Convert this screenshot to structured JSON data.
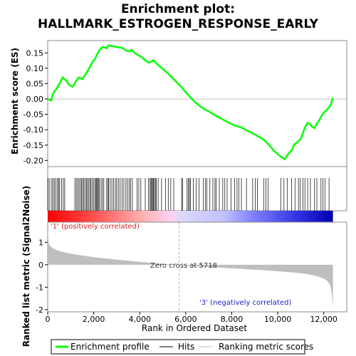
{
  "chart_data": {
    "type": "line",
    "title_line1": "Enrichment plot:",
    "title_line2": "HALLMARK_ESTROGEN_RESPONSE_EARLY",
    "es_panel": {
      "ylabel": "Enrichment score (ES)",
      "ylim": [
        -0.22,
        0.19
      ],
      "yticks": [
        -0.2,
        -0.15,
        -0.1,
        -0.05,
        0.0,
        0.05,
        0.1,
        0.15
      ],
      "ytick_labels": [
        "-0.20",
        "-0.15",
        "-0.10",
        "-0.05",
        "0.00",
        "0.05",
        "0.10",
        "0.15"
      ],
      "color": "#00ff00",
      "x": [
        0,
        150,
        250,
        400,
        550,
        650,
        800,
        950,
        1100,
        1200,
        1350,
        1500,
        1650,
        1800,
        1900,
        2050,
        2150,
        2250,
        2400,
        2550,
        2650,
        2800,
        2950,
        3100,
        3250,
        3400,
        3550,
        3650,
        3800,
        3950,
        4100,
        4250,
        4400,
        4500,
        4600,
        4700,
        4850,
        5000,
        5200,
        5400,
        5600,
        5800,
        6000,
        6200,
        6400,
        6600,
        6800,
        7000,
        7200,
        7400,
        7600,
        7800,
        8000,
        8200,
        8400,
        8600,
        8800,
        9000,
        9200,
        9400,
        9600,
        9800,
        10000,
        10150,
        10300,
        10400,
        10500,
        10600,
        10700,
        10850,
        11000,
        11100,
        11200,
        11300,
        11400,
        11500,
        11600,
        11700,
        11800,
        11900,
        12000,
        12100,
        12200,
        12300,
        12400
      ],
      "y": [
        0.0,
        -0.005,
        0.02,
        0.035,
        0.055,
        0.07,
        0.06,
        0.045,
        0.04,
        0.055,
        0.07,
        0.065,
        0.08,
        0.1,
        0.115,
        0.13,
        0.145,
        0.16,
        0.17,
        0.165,
        0.175,
        0.172,
        0.17,
        0.168,
        0.166,
        0.158,
        0.155,
        0.16,
        0.148,
        0.142,
        0.135,
        0.125,
        0.118,
        0.122,
        0.126,
        0.118,
        0.108,
        0.098,
        0.085,
        0.07,
        0.055,
        0.04,
        0.022,
        0.006,
        -0.01,
        -0.022,
        -0.033,
        -0.04,
        -0.05,
        -0.058,
        -0.066,
        -0.074,
        -0.082,
        -0.088,
        -0.092,
        -0.1,
        -0.108,
        -0.115,
        -0.124,
        -0.133,
        -0.148,
        -0.165,
        -0.18,
        -0.188,
        -0.196,
        -0.185,
        -0.175,
        -0.168,
        -0.15,
        -0.14,
        -0.13,
        -0.11,
        -0.09,
        -0.078,
        -0.082,
        -0.09,
        -0.095,
        -0.08,
        -0.07,
        -0.055,
        -0.045,
        -0.038,
        -0.03,
        -0.02,
        0.005
      ]
    },
    "hits_x": [
      20,
      90,
      180,
      230,
      290,
      360,
      430,
      470,
      520,
      600,
      680,
      740,
      1180,
      1240,
      1300,
      1360,
      1420,
      1470,
      1520,
      1570,
      1630,
      1680,
      1720,
      1780,
      1830,
      1880,
      1940,
      1990,
      2050,
      2100,
      2130,
      2170,
      2200,
      2250,
      2320,
      2380,
      2440,
      2560,
      2610,
      2650,
      2720,
      2790,
      2860,
      2940,
      3000,
      3070,
      3150,
      3230,
      3310,
      3400,
      3470,
      3540,
      3610,
      3680,
      3880,
      3960,
      4050,
      4240,
      4380,
      4450,
      4490,
      4520,
      4560,
      4600,
      4640,
      4680,
      4720,
      4800,
      4950,
      5120,
      5240,
      5350,
      5480,
      5820,
      5870,
      6060,
      6120,
      6160,
      6210,
      6330,
      6460,
      6580,
      6770,
      6860,
      6920,
      7050,
      7180,
      7270,
      7320,
      7460,
      7610,
      7700,
      7800,
      7970,
      8120,
      8230,
      8310,
      8420,
      8640,
      8910,
      9020,
      9120,
      9400,
      9490,
      9580,
      10130,
      10270,
      10410,
      10600,
      10750,
      10900,
      10980,
      11100,
      11180,
      11300,
      11420,
      11600,
      11700,
      11880,
      11960,
      12050,
      12230
    ],
    "metric": {
      "ylabel": "Ranked list metric (Signal2Noise)",
      "ylim": [
        -2.1,
        1.9
      ],
      "yticks": [
        -2,
        -1,
        0,
        1
      ],
      "ytick_labels": [
        "-2",
        "-1",
        "0",
        "1"
      ],
      "x": [
        0,
        50,
        100,
        200,
        400,
        700,
        1000,
        1500,
        2000,
        2500,
        3000,
        3500,
        4000,
        4500,
        5000,
        5500,
        5718,
        6000,
        6500,
        7000,
        7500,
        8000,
        8500,
        9000,
        9500,
        10000,
        10500,
        11000,
        11300,
        11600,
        11800,
        12000,
        12150,
        12250,
        12300,
        12350,
        12400
      ],
      "y": [
        1.55,
        0.95,
        0.85,
        0.75,
        0.65,
        0.56,
        0.49,
        0.41,
        0.34,
        0.28,
        0.23,
        0.18,
        0.13,
        0.08,
        0.04,
        0.01,
        0.0,
        -0.03,
        -0.07,
        -0.1,
        -0.13,
        -0.16,
        -0.19,
        -0.22,
        -0.25,
        -0.29,
        -0.33,
        -0.38,
        -0.42,
        -0.48,
        -0.54,
        -0.62,
        -0.72,
        -0.85,
        -1.0,
        -1.3,
        -1.9
      ]
    },
    "zero_cross_label": "Zero cross at 5718",
    "pos_label": "'1' (positively correlated)",
    "neg_label": "'3' (negatively correlated)",
    "xlabel": "Rank in Ordered Dataset",
    "xlim": [
      0,
      13000
    ],
    "xticks": [
      0,
      2000,
      4000,
      6000,
      8000,
      10000,
      12000
    ],
    "xtick_labels": [
      "0",
      "2,000",
      "4,000",
      "6,000",
      "8,000",
      "10,000",
      "12,000"
    ],
    "n_genes": 12400,
    "zero_cross": 5718,
    "legend": {
      "enrichment": "Enrichment profile",
      "hits": "Hits",
      "ranking": "Ranking metric scores"
    },
    "colors": {
      "es": "#00ff00",
      "hits": "#000000",
      "metric_fill": "#bebebe",
      "pos_text": "#e02020",
      "neg_text": "#2020c8",
      "zero_line": "#b0b0b0"
    }
  }
}
